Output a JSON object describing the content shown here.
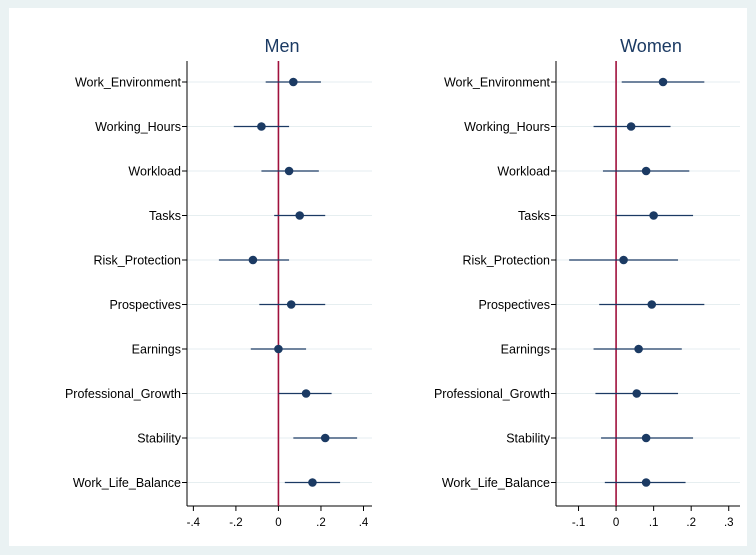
{
  "colors": {
    "background": "#eaf2f3",
    "plot_background": "#ffffff",
    "point": "#1b3a63",
    "ci_line": "#1b3a63",
    "zero_line": "#a0103c",
    "gridline": "#e6eef0",
    "title": "#1b3a63"
  },
  "chart_data": [
    {
      "type": "scatter",
      "subtype": "coefficient-plot",
      "title": "Men",
      "categories": [
        "Work_Environment",
        "Working_Hours",
        "Workload",
        "Tasks",
        "Risk_Protection",
        "Prospectives",
        "Earnings",
        "Professional_Growth",
        "Stability",
        "Work_Life_Balance"
      ],
      "estimates": [
        0.07,
        -0.08,
        0.05,
        0.1,
        -0.12,
        0.06,
        0.0,
        0.13,
        0.22,
        0.16
      ],
      "ci_low": [
        -0.06,
        -0.21,
        -0.08,
        -0.02,
        -0.28,
        -0.09,
        -0.13,
        0.0,
        0.07,
        0.03
      ],
      "ci_high": [
        0.2,
        0.05,
        0.19,
        0.22,
        0.05,
        0.22,
        0.13,
        0.25,
        0.37,
        0.29
      ],
      "xlim": [
        -0.43,
        0.44
      ],
      "xticks": [
        -0.4,
        -0.2,
        0,
        0.2,
        0.4
      ],
      "xtick_labels": [
        "-.4",
        "-.2",
        "0",
        ".2",
        ".4"
      ],
      "reference_line": 0,
      "grid": "horizontal"
    },
    {
      "type": "scatter",
      "subtype": "coefficient-plot",
      "title": "Women",
      "categories": [
        "Work_Environment",
        "Working_Hours",
        "Workload",
        "Tasks",
        "Risk_Protection",
        "Prospectives",
        "Earnings",
        "Professional_Growth",
        "Stability",
        "Work_Life_Balance"
      ],
      "estimates": [
        0.125,
        0.04,
        0.08,
        0.1,
        0.02,
        0.095,
        0.06,
        0.055,
        0.08,
        0.08
      ],
      "ci_low": [
        0.015,
        -0.06,
        -0.035,
        0.0,
        -0.125,
        -0.045,
        -0.06,
        -0.055,
        -0.04,
        -0.03
      ],
      "ci_high": [
        0.235,
        0.145,
        0.195,
        0.205,
        0.165,
        0.235,
        0.175,
        0.165,
        0.205,
        0.185
      ],
      "xlim": [
        -0.16,
        0.33
      ],
      "xticks": [
        -0.1,
        0,
        0.1,
        0.2,
        0.3
      ],
      "xtick_labels": [
        "-.1",
        "0",
        ".1",
        ".2",
        ".3"
      ],
      "reference_line": 0,
      "grid": "horizontal"
    }
  ]
}
